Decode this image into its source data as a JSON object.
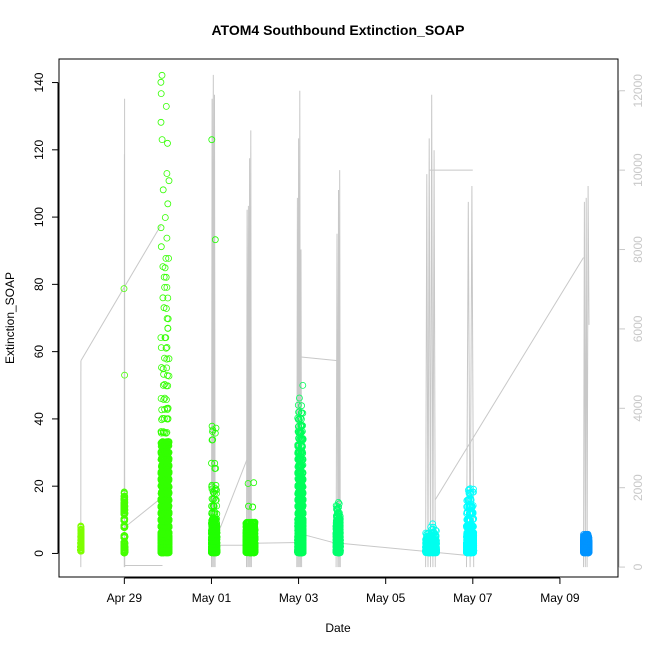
{
  "chart_data": {
    "type": "scatter",
    "title": "ATOM4 Southbound Extinction_SOAP",
    "xlabel": "Date",
    "ylabel": "Extinction_SOAP",
    "xlim": [
      "2018-04-27T12:00",
      "2018-05-10T08:00"
    ],
    "ylim": [
      -7,
      147
    ],
    "y2lim": [
      -250,
      12800
    ],
    "x_ticks": [
      {
        "date": "2018-04-29T00:00",
        "label": "Apr 29"
      },
      {
        "date": "2018-05-01T00:00",
        "label": "May 01"
      },
      {
        "date": "2018-05-03T00:00",
        "label": "May 03"
      },
      {
        "date": "2018-05-05T00:00",
        "label": "May 05"
      },
      {
        "date": "2018-05-07T00:00",
        "label": "May 07"
      },
      {
        "date": "2018-05-09T00:00",
        "label": "May 09"
      }
    ],
    "y_ticks": [
      0,
      20,
      40,
      60,
      80,
      100,
      120,
      140
    ],
    "y2_ticks": [
      0,
      2000,
      4000,
      6000,
      8000,
      10000,
      12000
    ],
    "colors": {
      "altitude_line": "#c8c8c8",
      "right_axis": "#c8c8c8",
      "frame": "#000000"
    },
    "series": [
      {
        "start": "2018-04-28T00:00",
        "end": "2018-04-28T00:10",
        "color": "#7fff00",
        "points": [
          [
            1,
            300
          ],
          [
            2,
            150
          ],
          [
            3,
            80
          ],
          [
            4,
            40
          ],
          [
            5,
            25
          ],
          [
            6,
            15
          ],
          [
            7,
            8
          ],
          [
            8,
            5
          ]
        ]
      },
      {
        "start": "2018-04-28T23:45",
        "end": "2018-04-29T00:15",
        "color": "#47ff00",
        "points": [
          [
            0.5,
            400
          ],
          [
            1,
            300
          ],
          [
            2,
            200
          ],
          [
            3,
            150
          ],
          [
            5,
            100
          ],
          [
            8,
            80
          ],
          [
            10,
            60
          ],
          [
            12,
            60
          ],
          [
            13,
            50
          ],
          [
            14,
            40
          ],
          [
            15,
            30
          ],
          [
            16,
            15
          ],
          [
            17,
            8
          ],
          [
            18,
            4
          ],
          [
            53,
            1
          ],
          [
            79,
            1
          ]
        ]
      },
      {
        "start": "2018-04-29T20:10",
        "end": "2018-04-30T00:40",
        "color": "#33ff00",
        "points": [
          [
            0.5,
            600
          ],
          [
            1,
            500
          ],
          [
            2,
            400
          ],
          [
            3,
            350
          ],
          [
            4,
            300
          ],
          [
            5,
            280
          ],
          [
            6,
            260
          ],
          [
            8,
            240
          ],
          [
            10,
            220
          ],
          [
            12,
            200
          ],
          [
            14,
            160
          ],
          [
            16,
            140
          ],
          [
            18,
            120
          ],
          [
            20,
            100
          ],
          [
            22,
            90
          ],
          [
            24,
            80
          ],
          [
            26,
            70
          ],
          [
            28,
            60
          ],
          [
            30,
            50
          ],
          [
            32,
            40
          ],
          [
            33,
            30
          ],
          [
            36,
            8
          ],
          [
            40,
            6
          ],
          [
            43,
            5
          ],
          [
            46,
            4
          ],
          [
            50,
            4
          ],
          [
            53,
            3
          ],
          [
            55,
            3
          ],
          [
            58,
            3
          ],
          [
            61,
            3
          ],
          [
            64,
            3
          ],
          [
            67,
            2
          ],
          [
            70,
            2
          ],
          [
            73,
            2
          ],
          [
            76,
            2
          ],
          [
            79,
            2
          ],
          [
            82,
            2
          ],
          [
            85,
            2
          ],
          [
            88,
            2
          ],
          [
            91,
            1
          ],
          [
            94,
            1
          ],
          [
            97,
            1
          ],
          [
            100,
            1
          ],
          [
            104,
            1
          ],
          [
            108,
            1
          ],
          [
            111,
            1
          ],
          [
            113,
            1
          ],
          [
            122,
            1
          ],
          [
            123,
            1
          ],
          [
            128,
            1
          ],
          [
            133,
            1
          ],
          [
            137,
            1
          ],
          [
            140,
            1
          ],
          [
            142,
            1
          ]
        ]
      },
      {
        "start": "2018-05-01T00:00",
        "end": "2018-05-01T03:00",
        "color": "#21ff00",
        "points": [
          [
            0.5,
            400
          ],
          [
            1,
            300
          ],
          [
            2,
            250
          ],
          [
            3,
            200
          ],
          [
            4,
            150
          ],
          [
            5,
            120
          ],
          [
            6,
            100
          ],
          [
            7,
            80
          ],
          [
            8,
            50
          ],
          [
            9,
            30
          ],
          [
            10,
            20
          ],
          [
            12,
            8
          ],
          [
            14,
            6
          ],
          [
            16,
            5
          ],
          [
            18,
            4
          ],
          [
            19,
            4
          ],
          [
            20,
            3
          ],
          [
            25,
            2
          ],
          [
            27,
            2
          ],
          [
            34,
            2
          ],
          [
            36,
            2
          ],
          [
            37,
            2
          ],
          [
            38,
            1
          ],
          [
            93,
            1
          ],
          [
            123,
            1
          ]
        ]
      },
      {
        "start": "2018-05-01T19:00",
        "end": "2018-05-02T00:00",
        "color": "#1eff00",
        "points": [
          [
            0.5,
            500
          ],
          [
            1,
            400
          ],
          [
            2,
            350
          ],
          [
            3,
            300
          ],
          [
            4,
            250
          ],
          [
            5,
            200
          ],
          [
            6,
            160
          ],
          [
            7,
            120
          ],
          [
            8,
            80
          ],
          [
            9,
            40
          ],
          [
            14,
            3
          ],
          [
            21,
            2
          ]
        ]
      },
      {
        "start": "2018-05-02T23:30",
        "end": "2018-05-03T02:30",
        "color": "#00ff5a",
        "points": [
          [
            0.5,
            400
          ],
          [
            1,
            350
          ],
          [
            2,
            300
          ],
          [
            3,
            250
          ],
          [
            4,
            220
          ],
          [
            5,
            200
          ],
          [
            6,
            180
          ],
          [
            7,
            160
          ],
          [
            8,
            140
          ],
          [
            9,
            120
          ],
          [
            10,
            100
          ],
          [
            12,
            80
          ],
          [
            14,
            60
          ],
          [
            16,
            50
          ],
          [
            18,
            45
          ],
          [
            20,
            40
          ],
          [
            22,
            35
          ],
          [
            24,
            30
          ],
          [
            26,
            25
          ],
          [
            28,
            20
          ],
          [
            30,
            20
          ],
          [
            32,
            15
          ],
          [
            34,
            12
          ],
          [
            36,
            10
          ],
          [
            38,
            8
          ],
          [
            40,
            6
          ],
          [
            42,
            5
          ],
          [
            44,
            2
          ],
          [
            46,
            1
          ],
          [
            50,
            1
          ]
        ]
      },
      {
        "start": "2018-05-03T20:40",
        "end": "2018-05-03T23:00",
        "color": "#00ff6e",
        "points": [
          [
            0.5,
            350
          ],
          [
            1,
            300
          ],
          [
            2,
            250
          ],
          [
            3,
            200
          ],
          [
            4,
            180
          ],
          [
            5,
            150
          ],
          [
            6,
            120
          ],
          [
            7,
            80
          ],
          [
            8,
            50
          ],
          [
            9,
            30
          ],
          [
            10,
            20
          ],
          [
            11,
            10
          ],
          [
            12,
            6
          ],
          [
            13,
            4
          ],
          [
            14,
            3
          ],
          [
            15,
            2
          ]
        ]
      },
      {
        "start": "2018-05-05T22:00",
        "end": "2018-05-06T04:00",
        "color": "#00ffee",
        "points": [
          [
            0.5,
            400
          ],
          [
            1,
            300
          ],
          [
            2,
            250
          ],
          [
            3,
            150
          ],
          [
            4,
            80
          ],
          [
            5,
            30
          ],
          [
            6,
            10
          ],
          [
            7,
            4
          ],
          [
            8,
            2
          ],
          [
            9,
            1
          ]
        ]
      },
      {
        "start": "2018-05-06T20:30",
        "end": "2018-05-07T00:30",
        "color": "#00ffff",
        "points": [
          [
            0.5,
            400
          ],
          [
            1,
            300
          ],
          [
            2,
            250
          ],
          [
            3,
            200
          ],
          [
            4,
            150
          ],
          [
            5,
            100
          ],
          [
            6,
            80
          ],
          [
            8,
            50
          ],
          [
            10,
            30
          ],
          [
            12,
            20
          ],
          [
            14,
            15
          ],
          [
            16,
            10
          ],
          [
            18,
            6
          ],
          [
            19,
            4
          ]
        ]
      },
      {
        "start": "2018-05-09T13:00",
        "end": "2018-05-09T16:00",
        "color": "#0094ff",
        "points": [
          [
            0.5,
            400
          ],
          [
            1,
            350
          ],
          [
            1.5,
            300
          ],
          [
            2,
            300
          ],
          [
            2.5,
            250
          ],
          [
            3,
            200
          ],
          [
            3.5,
            150
          ],
          [
            4,
            100
          ],
          [
            4.5,
            60
          ],
          [
            5,
            30
          ],
          [
            5.5,
            10
          ]
        ]
      }
    ],
    "altitude_segments": [
      [
        [
          "2018-04-28T00:00",
          0
        ],
        [
          "2018-04-28T00:05",
          5200
        ]
      ],
      [
        [
          "2018-04-28T00:05",
          5200
        ],
        [
          "2018-04-29T20:00",
          8600
        ]
      ],
      [
        [
          "2018-04-29T00:00",
          0
        ],
        [
          "2018-04-29T00:02",
          10400
        ],
        [
          "2018-04-29T00:04",
          0
        ],
        [
          "2018-04-29T00:06",
          10000
        ],
        [
          "2018-04-29T00:08",
          0
        ],
        [
          "2018-04-29T00:10",
          11800
        ],
        [
          "2018-04-29T00:12",
          0
        ]
      ],
      [
        [
          "2018-04-29T00:12",
          40
        ],
        [
          "2018-04-29T21:00",
          40
        ]
      ],
      [
        [
          "2018-04-29T00:10",
          1000
        ],
        [
          "2018-04-30T00:40",
          1900
        ]
      ],
      [
        [
          "2018-05-01T00:00",
          0
        ],
        [
          "2018-05-01T00:20",
          11800
        ],
        [
          "2018-05-01T00:40",
          0
        ],
        [
          "2018-05-01T01:00",
          12400
        ],
        [
          "2018-05-01T01:20",
          0
        ],
        [
          "2018-05-01T01:40",
          11900
        ],
        [
          "2018-05-01T02:00",
          0
        ]
      ],
      [
        [
          "2018-05-01T00:40",
          550
        ],
        [
          "2018-05-01T19:00",
          550
        ]
      ],
      [
        [
          "2018-05-01T00:40",
          500
        ],
        [
          "2018-05-01T19:30",
          2700
        ]
      ],
      [
        [
          "2018-05-01T19:20",
          0
        ],
        [
          "2018-05-01T19:40",
          9000
        ],
        [
          "2018-05-01T20:00",
          0
        ],
        [
          "2018-05-01T20:20",
          9100
        ],
        [
          "2018-05-01T20:40",
          0
        ],
        [
          "2018-05-01T21:00",
          10300
        ],
        [
          "2018-05-01T21:20",
          0
        ],
        [
          "2018-05-01T21:40",
          11000
        ],
        [
          "2018-05-01T22:00",
          0
        ]
      ],
      [
        [
          "2018-05-01T22:00",
          600
        ],
        [
          "2018-05-03T00:00",
          620
        ]
      ],
      [
        [
          "2018-05-02T23:00",
          0
        ],
        [
          "2018-05-02T23:20",
          9300
        ],
        [
          "2018-05-02T23:40",
          0
        ],
        [
          "2018-05-03T00:00",
          10800
        ],
        [
          "2018-05-03T00:20",
          0
        ],
        [
          "2018-05-03T00:40",
          12000
        ],
        [
          "2018-05-03T01:00",
          0
        ],
        [
          "2018-05-03T01:20",
          8000
        ],
        [
          "2018-05-03T01:40",
          0
        ]
      ],
      [
        [
          "2018-05-03T00:00",
          5300
        ],
        [
          "2018-05-03T22:00",
          5200
        ]
      ],
      [
        [
          "2018-05-03T00:00",
          850
        ],
        [
          "2018-05-03T20:40",
          600
        ]
      ],
      [
        [
          "2018-05-03T20:40",
          0
        ],
        [
          "2018-05-03T21:10",
          8400
        ],
        [
          "2018-05-03T21:40",
          0
        ],
        [
          "2018-05-03T22:00",
          9500
        ],
        [
          "2018-05-03T22:20",
          0
        ],
        [
          "2018-05-03T22:40",
          10000
        ],
        [
          "2018-05-03T23:00",
          0
        ]
      ],
      [
        [
          "2018-05-03T23:00",
          600
        ],
        [
          "2018-05-06T20:00",
          300
        ]
      ],
      [
        [
          "2018-05-05T22:00",
          0
        ],
        [
          "2018-05-05T22:40",
          9900
        ],
        [
          "2018-05-05T23:20",
          0
        ],
        [
          "2018-05-06T00:00",
          10800
        ],
        [
          "2018-05-06T00:40",
          0
        ],
        [
          "2018-05-06T01:20",
          11900
        ],
        [
          "2018-05-06T02:00",
          0
        ],
        [
          "2018-05-06T02:40",
          10500
        ],
        [
          "2018-05-06T03:20",
          0
        ]
      ],
      [
        [
          "2018-05-06T00:00",
          10000
        ],
        [
          "2018-05-07T00:00",
          10000
        ]
      ],
      [
        [
          "2018-05-06T03:20",
          1700
        ],
        [
          "2018-05-09T13:00",
          7800
        ]
      ],
      [
        [
          "2018-05-06T20:30",
          0
        ],
        [
          "2018-05-06T21:30",
          9200
        ],
        [
          "2018-05-06T22:30",
          0
        ],
        [
          "2018-05-06T23:30",
          9600
        ],
        [
          "2018-05-07T00:30",
          0
        ]
      ],
      [
        [
          "2018-05-09T13:00",
          0
        ],
        [
          "2018-05-09T13:30",
          9200
        ],
        [
          "2018-05-09T14:00",
          0
        ],
        [
          "2018-05-09T14:30",
          9300
        ],
        [
          "2018-05-09T15:00",
          0
        ],
        [
          "2018-05-09T15:30",
          9600
        ],
        [
          "2018-05-09T16:00",
          6100
        ]
      ]
    ]
  }
}
